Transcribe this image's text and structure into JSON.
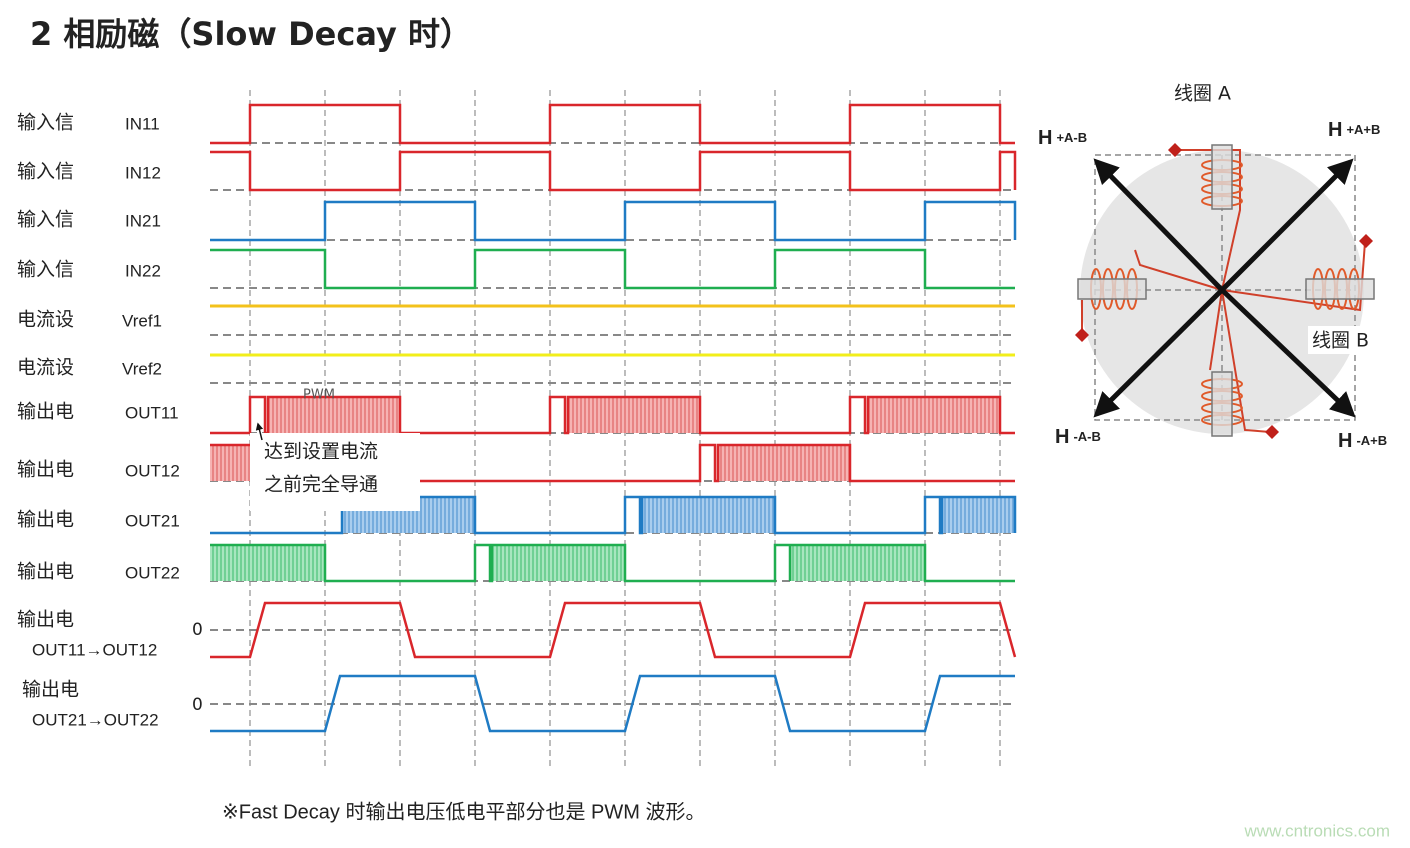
{
  "title": "2 相励磁（Slow Decay 时）",
  "rows": [
    {
      "label": "输入信",
      "signal": "IN11"
    },
    {
      "label": "输入信",
      "signal": "IN12"
    },
    {
      "label": "输入信",
      "signal": "IN21"
    },
    {
      "label": "输入信",
      "signal": "IN22"
    },
    {
      "label": "电流设",
      "signal": "Vref1"
    },
    {
      "label": "电流设",
      "signal": "Vref2"
    },
    {
      "label": "输出电",
      "signal": "OUT11"
    },
    {
      "label": "输出电",
      "signal": "OUT12"
    },
    {
      "label": "输出电",
      "signal": "OUT21"
    },
    {
      "label": "输出电",
      "signal": "OUT22"
    },
    {
      "label": "输出电",
      "signal": "OUT11→OUT12"
    },
    {
      "label": "输出电",
      "signal": "OUT21→OUT22"
    }
  ],
  "pwm_label": "PWM",
  "callout": [
    "达到设置电流",
    "之前完全导通"
  ],
  "zero_labels": [
    "0",
    "0"
  ],
  "vector_diagram": {
    "coil_a": "线圈 A",
    "coil_b": "线圈 B",
    "corners": [
      {
        "main": "H",
        "sub": "+A-B"
      },
      {
        "main": "H",
        "sub": "+A+B"
      },
      {
        "main": "H",
        "sub": "-A-B"
      },
      {
        "main": "H",
        "sub": "-A+B"
      }
    ]
  },
  "footnote": "※Fast Decay 时输出电压低电平部分也是 PWM 波形。",
  "watermark": "www.cntronics.com"
}
